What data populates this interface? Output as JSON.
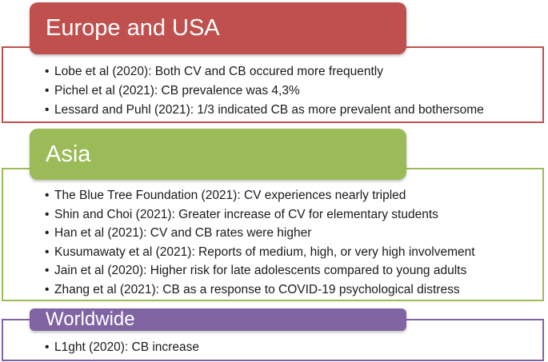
{
  "sections": [
    {
      "title": "Europe and USA",
      "color": "#c0504d",
      "items": [
        "Lobe et al (2020): Both CV and CB occured more frequently",
        "Pichel et al (2021): CB prevalence was 4,3%",
        "Lessard and Puhl (2021): 1/3 indicated CB as more prevalent and bothersome"
      ]
    },
    {
      "title": "Asia",
      "color": "#9bbb59",
      "items": [
        "The Blue Tree Foundation (2021): CV experiences nearly tripled",
        "Shin and Choi (2021): Greater increase of CV for elementary students",
        "Han et al (2021): CV and CB rates were higher",
        "Kusumawaty et al (2021): Reports of medium, high, or very high involvement",
        "Jain et al (2020): Higher risk for late adolescents compared to young adults",
        "Zhang et al (2021): CB as a response to COVID-19 psychological distress"
      ]
    },
    {
      "title": "Worldwide",
      "color": "#8064a2",
      "items": [
        "L1ght (2020): CB increase"
      ]
    }
  ]
}
